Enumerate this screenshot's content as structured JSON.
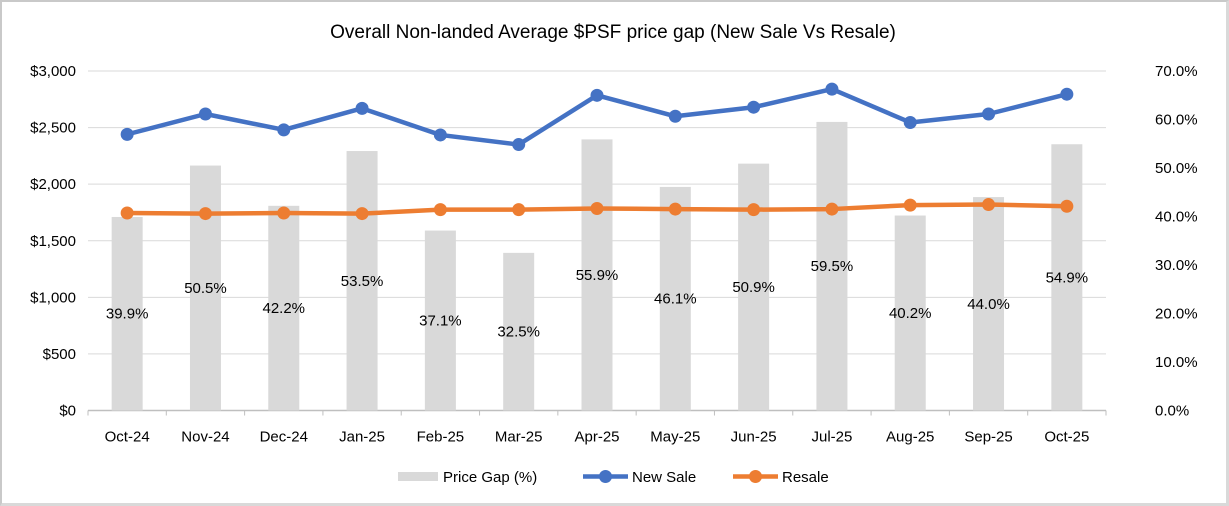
{
  "chart_data": {
    "type": "combo-bar-line",
    "title": "Overall Non-landed Average $PSF price gap (New Sale Vs Resale)",
    "categories": [
      "Oct-24",
      "Nov-24",
      "Dec-24",
      "Jan-25",
      "Feb-25",
      "Mar-25",
      "Apr-25",
      "May-25",
      "Jun-25",
      "Jul-25",
      "Aug-25",
      "Sep-25",
      "Oct-25"
    ],
    "series": [
      {
        "name": "Price Gap (%)",
        "type": "bar",
        "axis": "right",
        "unit": "%",
        "color": "#d9d9d9",
        "values": [
          39.9,
          50.5,
          42.2,
          53.5,
          37.1,
          32.5,
          55.9,
          46.1,
          50.9,
          59.5,
          40.2,
          44.0,
          54.9
        ],
        "labels": [
          "39.9%",
          "50.5%",
          "42.2%",
          "53.5%",
          "37.1%",
          "32.5%",
          "55.9%",
          "46.1%",
          "50.9%",
          "59.5%",
          "40.2%",
          "44.0%",
          "54.9%"
        ]
      },
      {
        "name": "New Sale",
        "type": "line",
        "axis": "left",
        "unit": "$ PSF",
        "color": "#4472c4",
        "values": [
          2440,
          2620,
          2480,
          2670,
          2435,
          2350,
          2785,
          2600,
          2680,
          2840,
          2545,
          2620,
          2795
        ]
      },
      {
        "name": "Resale",
        "type": "line",
        "axis": "left",
        "unit": "$ PSF",
        "color": "#ed7d31",
        "values": [
          1745,
          1740,
          1745,
          1740,
          1775,
          1775,
          1785,
          1780,
          1775,
          1780,
          1815,
          1820,
          1805
        ]
      }
    ],
    "left_axis": {
      "min": 0,
      "max": 3000,
      "step": 500,
      "tick_labels": [
        "$0",
        "$500",
        "$1,000",
        "$1,500",
        "$2,000",
        "$2,500",
        "$3,000"
      ]
    },
    "right_axis": {
      "min": 0,
      "max": 70,
      "step": 10,
      "tick_labels": [
        "0.0%",
        "10.0%",
        "20.0%",
        "30.0%",
        "40.0%",
        "50.0%",
        "60.0%",
        "70.0%"
      ]
    },
    "grid": true,
    "legend_position": "bottom",
    "colors": {
      "grid": "#d9d9d9",
      "axis_line": "#bfbfbf",
      "tick": "#bfbfbf",
      "text": "#000000"
    }
  }
}
